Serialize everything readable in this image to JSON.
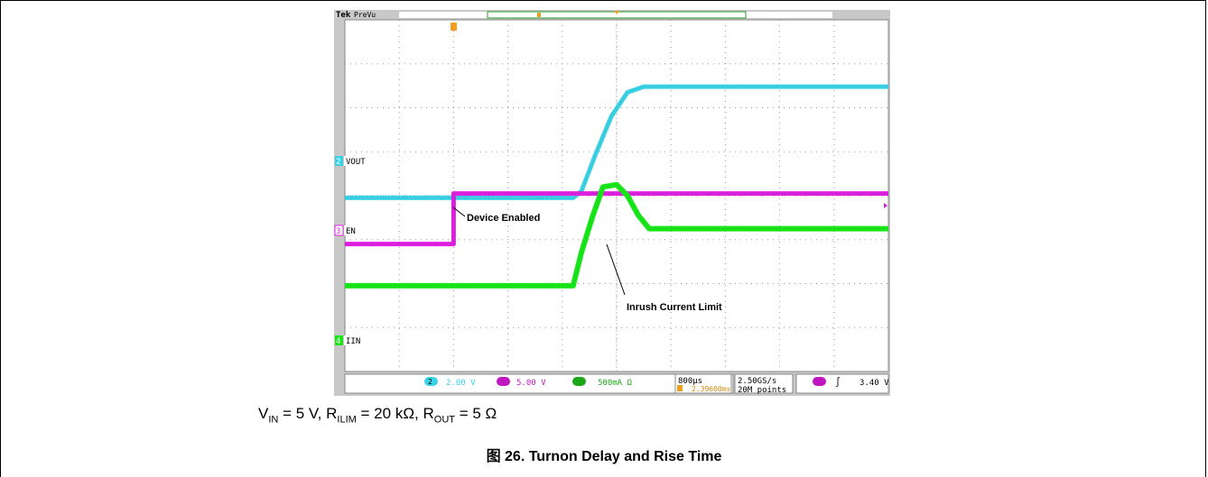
{
  "scope": {
    "brand": "Tek",
    "mode": "PreVu",
    "channels": [
      {
        "id": "2",
        "label": "VOUT",
        "color": "#3cd2e6",
        "scale": "2.00 V"
      },
      {
        "id": "3",
        "label": "EN",
        "color": "#e020e0",
        "scale": "5.00 V"
      },
      {
        "id": "4",
        "label": "IIN",
        "color": "#19e619",
        "scale": "500mA Ω"
      }
    ],
    "timebase": "800µs",
    "trigger_offset": "2.39600ms",
    "sample_rate": "2.50GS/s",
    "record_length": "20M points",
    "trigger_channel": "3",
    "trigger_level": "3.40 V",
    "trigger_slope_symbol": "∫",
    "annotations": [
      {
        "text": "Device Enabled"
      },
      {
        "text": "Inrush Current Limit"
      }
    ]
  },
  "chart_data": {
    "type": "line",
    "x_unit": "divisions (800µs/div)",
    "xlim": [
      0,
      10
    ],
    "ylim": [
      -4,
      4
    ],
    "grid": true,
    "series": [
      {
        "name": "VOUT",
        "x": [
          0,
          4.2,
          4.35,
          4.6,
          4.9,
          5.2,
          5.5,
          10
        ],
        "y": [
          -0.05,
          -0.05,
          0.1,
          0.9,
          1.8,
          2.35,
          2.48,
          2.48
        ]
      },
      {
        "name": "EN",
        "x": [
          0,
          2.0,
          2.0,
          10
        ],
        "y": [
          -1.1,
          -1.1,
          0.05,
          0.05
        ]
      },
      {
        "name": "IIN",
        "x": [
          0,
          4.2,
          4.35,
          4.55,
          4.75,
          5.0,
          5.2,
          5.4,
          5.6,
          10
        ],
        "y": [
          -2.05,
          -2.05,
          -1.3,
          -0.5,
          0.2,
          0.25,
          0.0,
          -0.45,
          -0.75,
          -0.75
        ]
      }
    ]
  },
  "caption": {
    "vin_pre": "V",
    "vin_sub": "IN",
    "vin_post": " = 5 V, R",
    "rilim_sub": "ILIM",
    "rilim_post": " = 20 kΩ, R",
    "rout_sub": "OUT",
    "rout_post": " = 5 Ω"
  },
  "figure_title": "图 26. Turnon Delay and Rise Time"
}
